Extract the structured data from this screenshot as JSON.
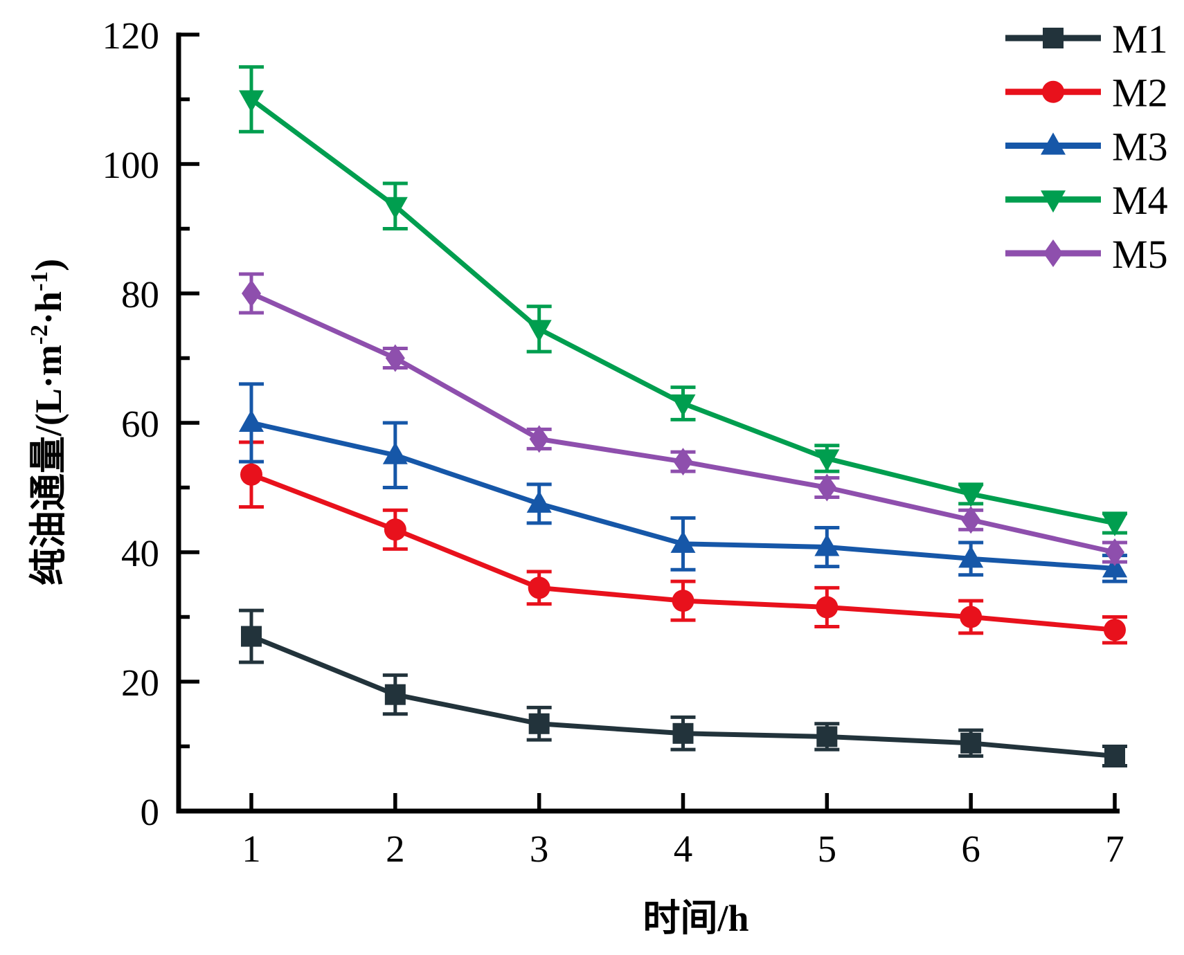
{
  "figure": {
    "background": "#ffffff",
    "axis_color": "#000000"
  },
  "chart_data": {
    "type": "line",
    "title": "",
    "x": [
      1,
      2,
      3,
      4,
      5,
      6,
      7
    ],
    "xlabel": "时间/h",
    "ylabel": "纯油通量/(L·m⁻²·h⁻¹)",
    "grid": false,
    "legend_position": "top-right",
    "error_bars": true,
    "x_axis": {
      "label": "时间/h",
      "ticks": [
        1,
        2,
        3,
        4,
        5,
        6,
        7
      ],
      "range": [
        0.5,
        7.03
      ]
    },
    "y_axis": {
      "label": "纯油通量/(L·m⁻²·h⁻¹)",
      "ticks": [
        0,
        20,
        40,
        60,
        80,
        100,
        120
      ],
      "minor_step": 10,
      "range": [
        0,
        120
      ],
      "label_segments": [
        {
          "text": "纯油通量/(L·m",
          "sup": false
        },
        {
          "text": "-2",
          "sup": true
        },
        {
          "text": "·h",
          "sup": false
        },
        {
          "text": "-1",
          "sup": true
        },
        {
          "text": ")",
          "sup": false
        }
      ]
    },
    "series": [
      {
        "name": "M1",
        "color": "#22333B",
        "marker": "square",
        "values": [
          27,
          18,
          13.5,
          12,
          11.5,
          10.5,
          8.5
        ],
        "errors": [
          4,
          3,
          2.5,
          2.5,
          2,
          2,
          1.5
        ]
      },
      {
        "name": "M2",
        "color": "#E8111C",
        "marker": "circle",
        "values": [
          52,
          43.5,
          34.5,
          32.5,
          31.5,
          30,
          28
        ],
        "errors": [
          5,
          3,
          2.5,
          3,
          3,
          2.5,
          2
        ]
      },
      {
        "name": "M3",
        "color": "#1657A8",
        "marker": "triangle-up",
        "values": [
          60,
          55,
          47.5,
          41.3,
          40.8,
          39,
          37.5
        ],
        "errors": [
          6,
          5,
          3,
          4,
          3,
          2.5,
          2
        ]
      },
      {
        "name": "M4",
        "color": "#009E4F",
        "marker": "triangle-down",
        "values": [
          110,
          93.5,
          74.5,
          63,
          54.5,
          49,
          44.5
        ],
        "errors": [
          5,
          3.5,
          3.5,
          2.5,
          2,
          1.5,
          1.5
        ]
      },
      {
        "name": "M5",
        "color": "#8E4FAD",
        "marker": "diamond",
        "values": [
          80,
          70,
          57.5,
          54,
          50,
          45,
          40
        ],
        "errors": [
          3,
          1.5,
          1.5,
          1.5,
          1.5,
          1.5,
          1.5
        ]
      }
    ]
  }
}
